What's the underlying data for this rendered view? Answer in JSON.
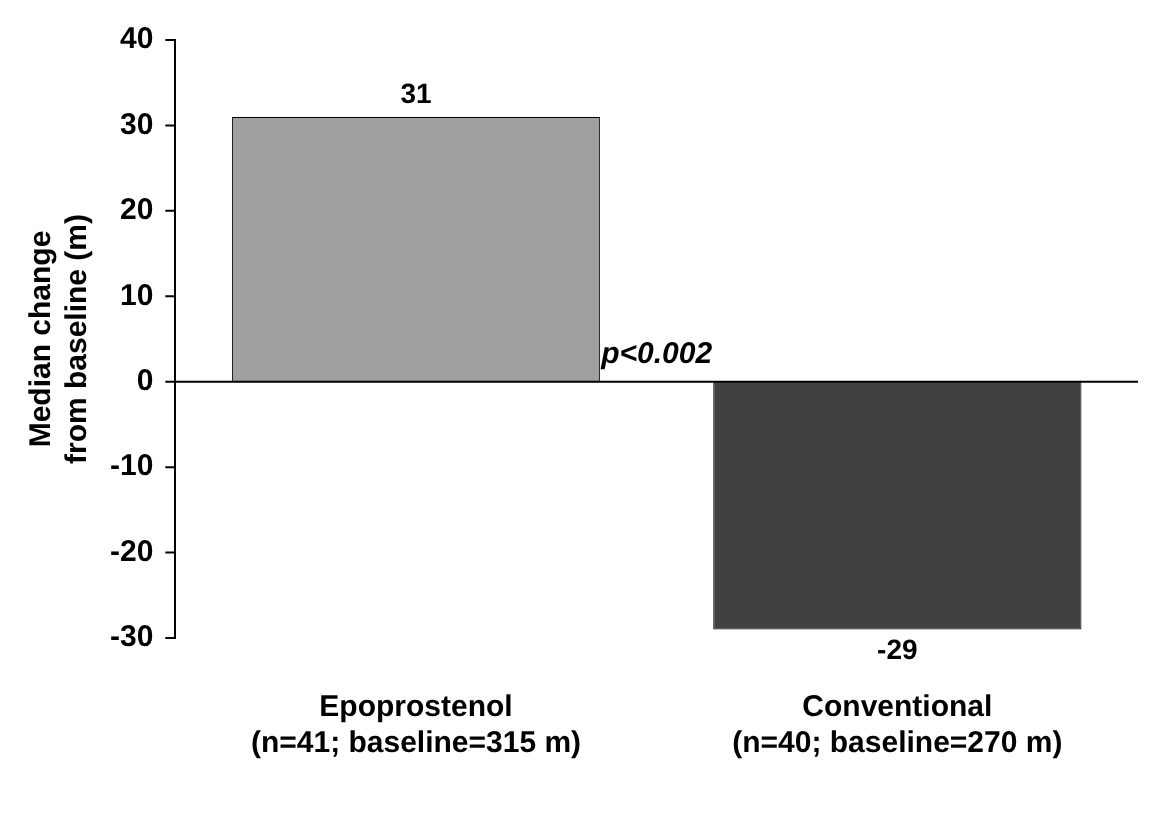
{
  "chart_data": {
    "type": "bar",
    "ylabel": "Median change\nfrom baseline (m)",
    "categories": [
      "Epoprostenol\n(n=41; baseline=315 m)",
      "Conventional\n(n=40; baseline=270 m)"
    ],
    "values": [
      31,
      -29
    ],
    "colors": [
      "#a0a0a0",
      "#404040"
    ],
    "ylim": [
      -30,
      40
    ],
    "yticks": [
      -30,
      -20,
      -10,
      0,
      10,
      20,
      30,
      40
    ],
    "grid": false,
    "legend": false,
    "data_labels": true,
    "annotations": [
      "p<0.002"
    ],
    "ref_lines": [
      {
        "axis": "y",
        "value": 0,
        "color": "#000000"
      }
    ]
  }
}
